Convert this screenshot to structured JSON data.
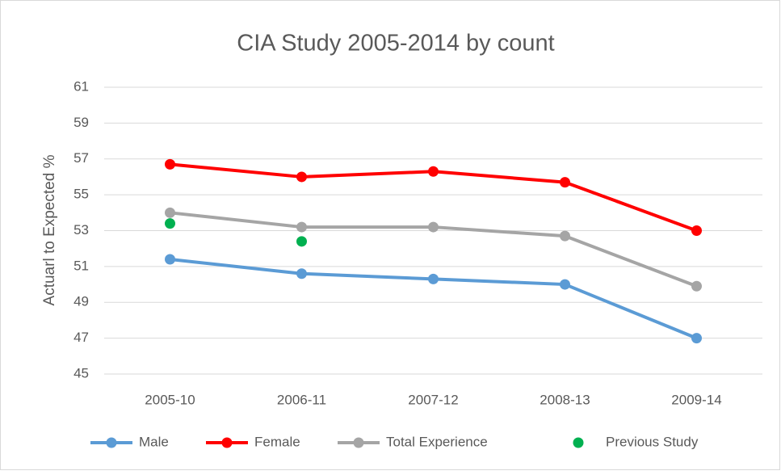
{
  "chart_data": {
    "type": "line",
    "title": "CIA Study 2005-2014 by count",
    "y_label": "Actuarl to Expected %",
    "categories": [
      "2005-10",
      "2006-11",
      "2007-12",
      "2008-13",
      "2009-14"
    ],
    "series": [
      {
        "name": "Male",
        "color": "#5b9bd5",
        "line": true,
        "values": [
          51.4,
          50.6,
          50.3,
          50.0,
          47.0
        ]
      },
      {
        "name": "Female",
        "color": "#ff0000",
        "line": true,
        "values": [
          56.7,
          56.0,
          56.3,
          55.7,
          53.0
        ]
      },
      {
        "name": "Total Experience",
        "color": "#a5a5a5",
        "line": true,
        "values": [
          54.0,
          53.2,
          53.2,
          52.7,
          49.9
        ]
      },
      {
        "name": "Previous Study",
        "color": "#00b050",
        "line": false,
        "values": [
          53.4,
          52.4,
          null,
          null,
          null
        ]
      }
    ],
    "ylim": [
      45,
      61
    ],
    "yticks": [
      45,
      47,
      49,
      51,
      53,
      55,
      57,
      59,
      61
    ],
    "grid": true,
    "legend": "bottom"
  }
}
